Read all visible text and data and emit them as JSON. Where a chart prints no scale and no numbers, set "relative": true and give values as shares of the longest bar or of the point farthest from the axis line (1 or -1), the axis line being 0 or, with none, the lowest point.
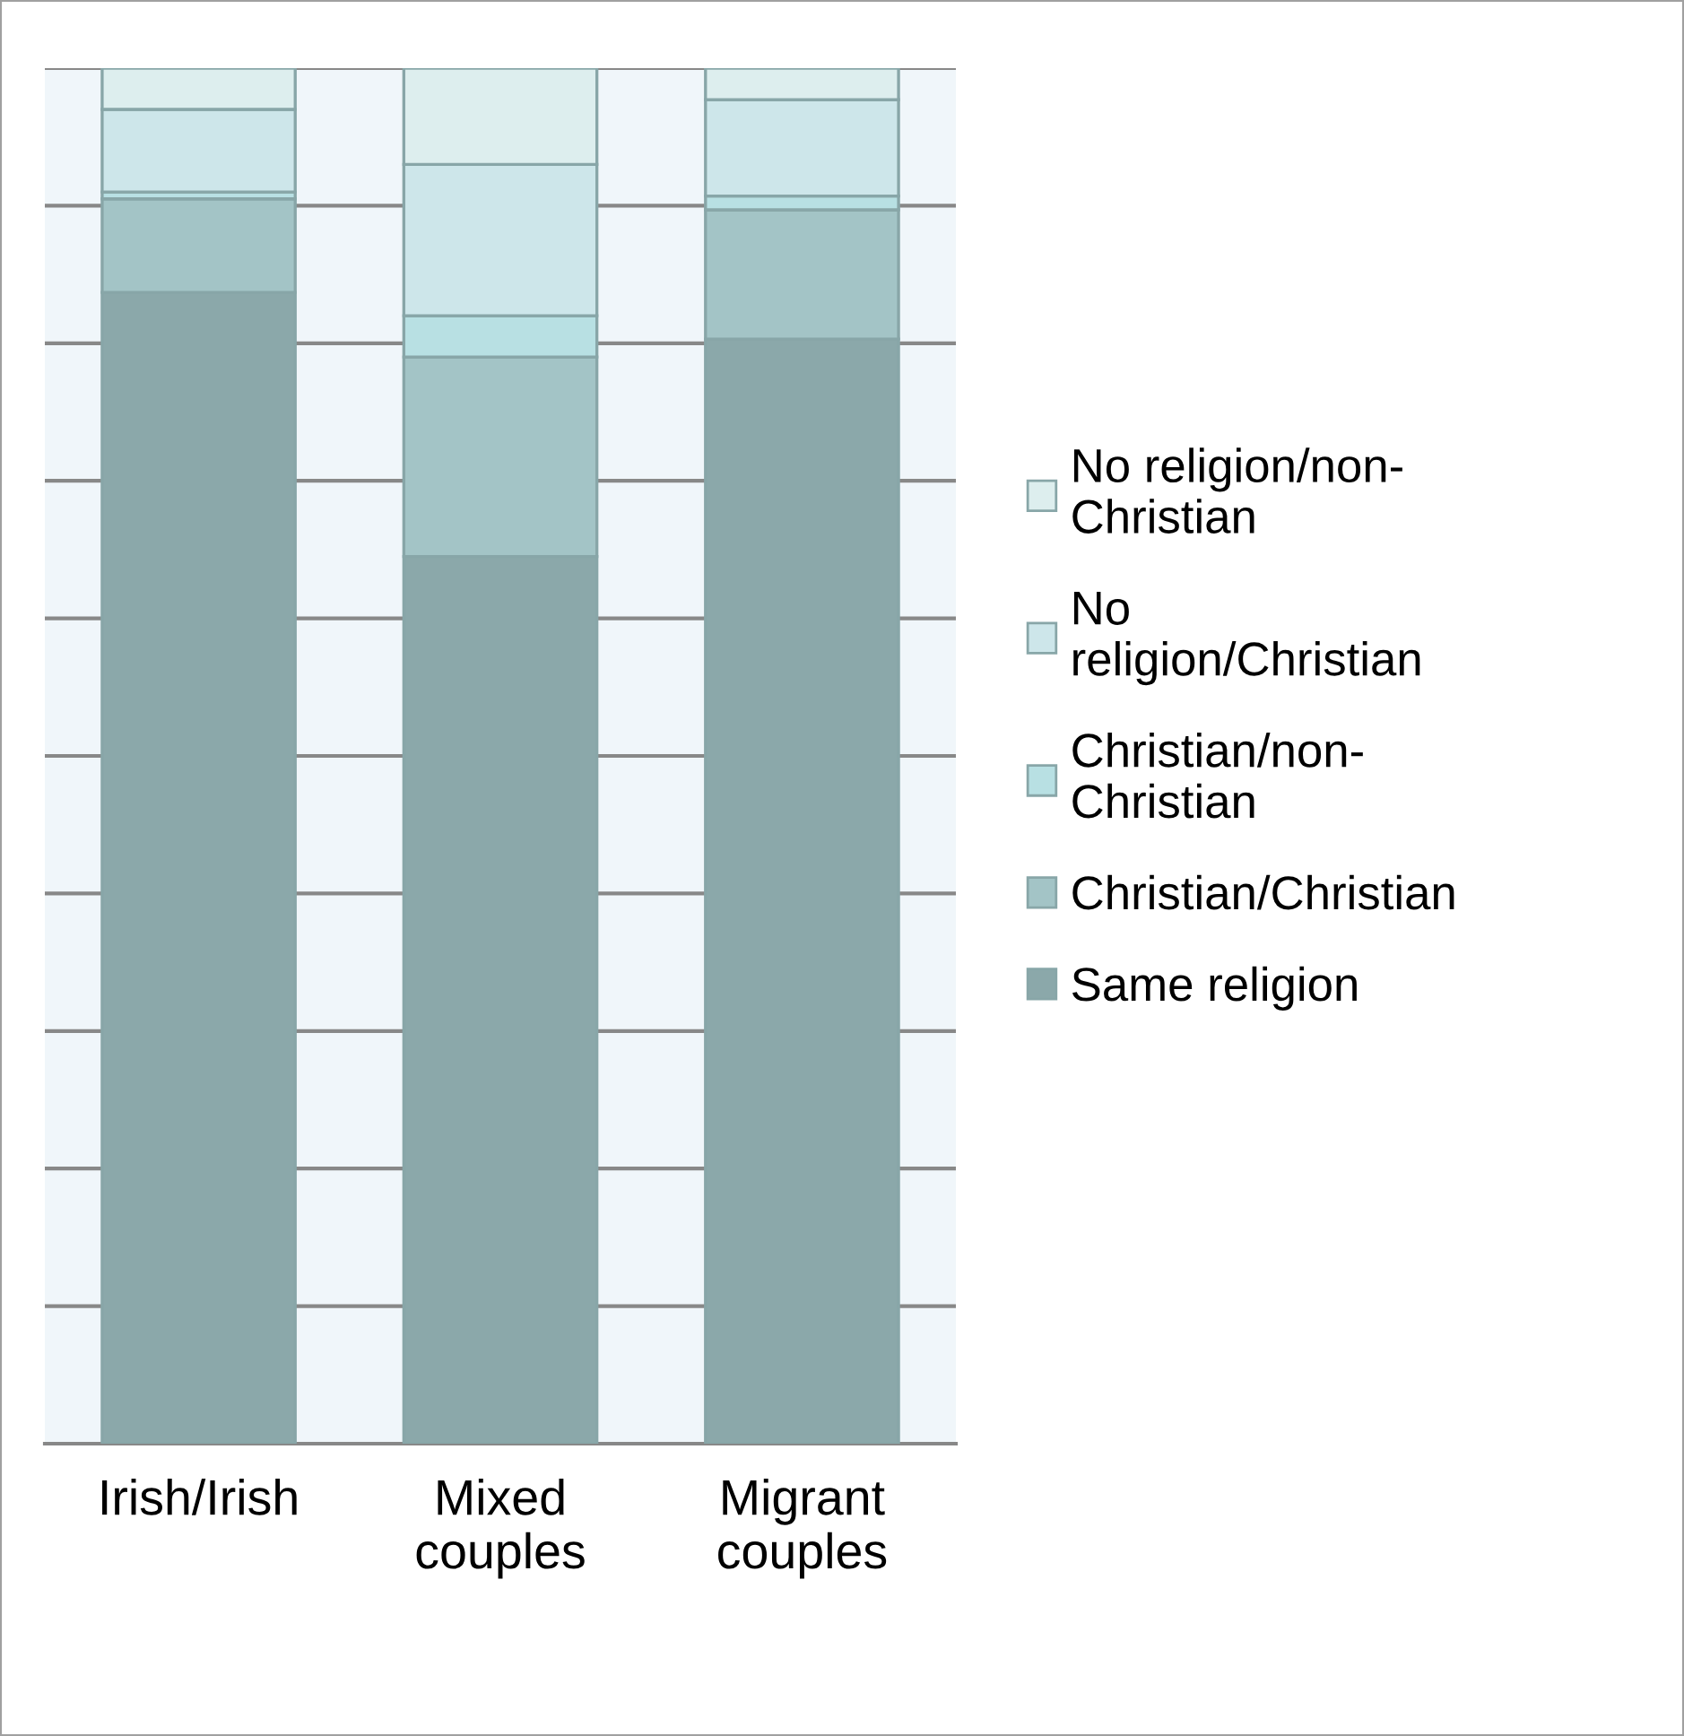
{
  "chart_data": {
    "type": "bar",
    "stacked": true,
    "relative": true,
    "grid": "y",
    "legend": "right",
    "categories": [
      "Irish/Irish",
      "Mixed couples",
      "Migrant couples"
    ],
    "series": [
      {
        "name": "Same religion",
        "color": "#8ba8aa",
        "values": [
          0.837,
          0.645,
          0.803
        ]
      },
      {
        "name": "Christian/Christian",
        "color": "#a3c4c6",
        "values": [
          0.068,
          0.145,
          0.094
        ]
      },
      {
        "name": "Christian/non-Christian",
        "color": "#b8e0e3",
        "values": [
          0.005,
          0.03,
          0.01
        ]
      },
      {
        "name": "No religion/Christian",
        "color": "#cde6ea",
        "values": [
          0.06,
          0.11,
          0.07
        ]
      },
      {
        "name": "No religion/non-Christian",
        "color": "#ddeeee",
        "values": [
          0.03,
          0.07,
          0.023
        ]
      }
    ]
  }
}
